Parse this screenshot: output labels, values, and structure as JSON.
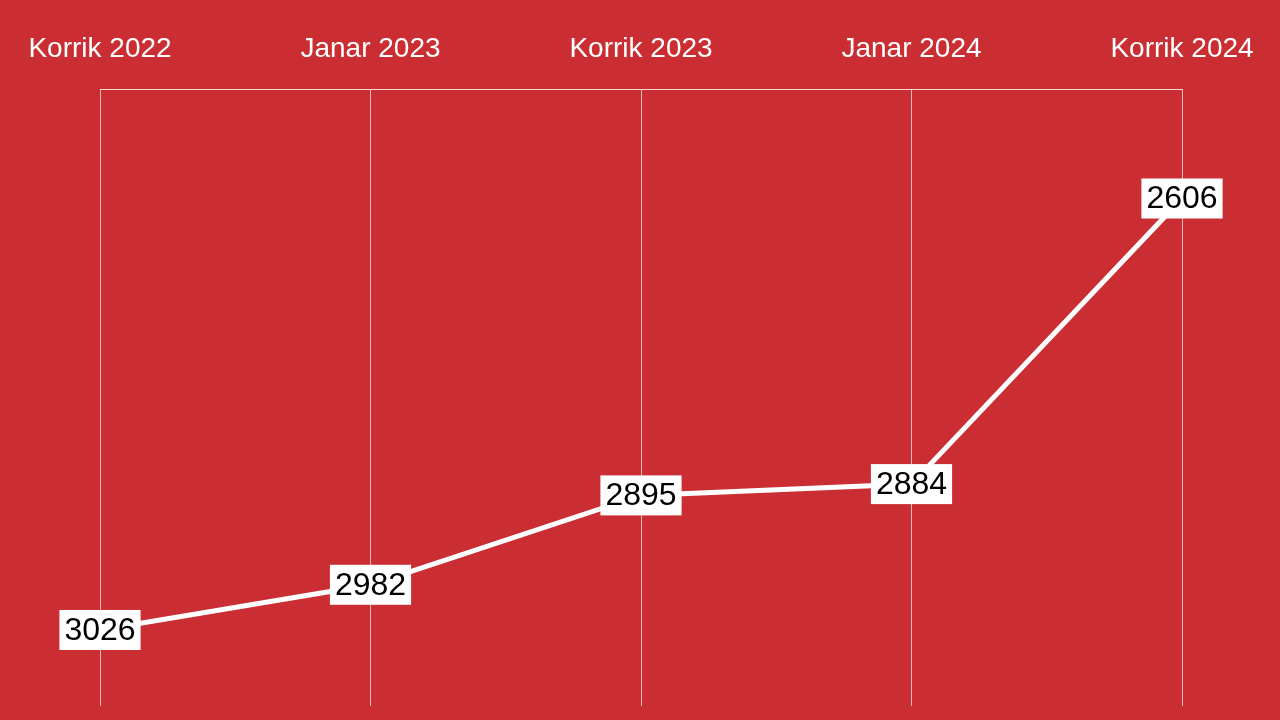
{
  "chart_data": {
    "type": "line",
    "categories": [
      "Korrik 2022",
      "Janar 2023",
      "Korrik 2023",
      "Janar 2024",
      "Korrik 2024"
    ],
    "values": [
      3026,
      2982,
      2895,
      2884,
      2606
    ],
    "color": "#ffffff",
    "ylim": [
      3100,
      2500
    ],
    "grid": "x",
    "tick_labels": "x",
    "data_labels": true
  }
}
